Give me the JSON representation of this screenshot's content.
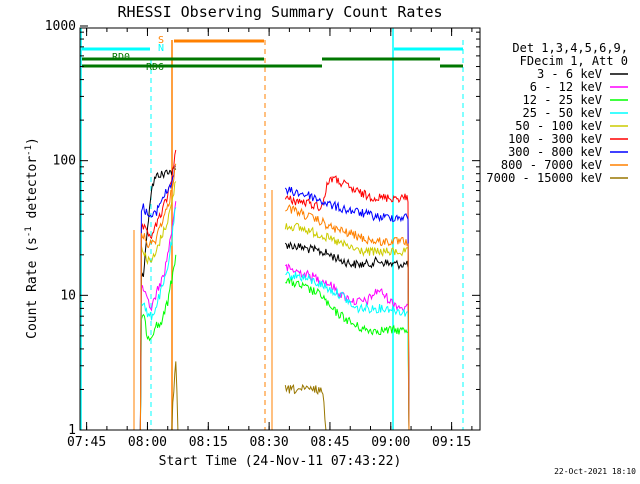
{
  "chart_data": {
    "type": "line",
    "title": "RHESSI Observing Summary Count Rates",
    "xlabel": "Start Time (24-Nov-11 07:43:22)",
    "ylabel": "Count Rate (s",
    "ylabel_sup1": "-1",
    "ylabel_mid": " detector",
    "ylabel_sup2": "-1",
    "ylabel_end": ")",
    "yscale": "log",
    "ylim": [
      1,
      1000
    ],
    "xlim": [
      "07:43:22",
      "09:22"
    ],
    "x_ticks": [
      "07:45",
      "08:00",
      "08:15",
      "08:30",
      "08:45",
      "09:00",
      "09:15"
    ],
    "y_ticks": [
      "1",
      "10",
      "100",
      "1000"
    ],
    "grid": false,
    "legend_position": "right",
    "legend_header": [
      "Det 1,3,4,5,6,9,",
      "FDecim 1, Att 0"
    ],
    "series": [
      {
        "name": "3 - 6 keV",
        "color": "#000000",
        "segments": [
          {
            "x": [
              "07:58",
              "07:59",
              "08:00",
              "08:01",
              "08:02",
              "08:03",
              "08:04",
              "08:05",
              "08:06",
              "08:07"
            ],
            "y": [
              0,
              14,
              30,
              62,
              75,
              80,
              78,
              85,
              82,
              86
            ]
          },
          {
            "x": [
              "08:34",
              "08:37",
              "08:40",
              "08:43",
              "08:45",
              "08:48",
              "08:51",
              "08:54",
              "08:57",
              "09:00",
              "09:03",
              "09:06"
            ],
            "y": [
              24,
              23,
              22,
              21,
              20,
              18,
              17,
              17,
              18,
              17,
              17,
              0
            ]
          }
        ]
      },
      {
        "name": "6 - 12 keV",
        "color": "#ff00ff",
        "segments": [
          {
            "x": [
              "07:58",
              "07:59",
              "08:00",
              "08:01",
              "08:02",
              "08:03",
              "08:04",
              "08:05",
              "08:06",
              "08:07"
            ],
            "y": [
              0,
              11,
              9,
              8,
              10,
              12,
              14,
              20,
              30,
              50
            ]
          },
          {
            "x": [
              "08:34",
              "08:37",
              "08:40",
              "08:43",
              "08:45",
              "08:48",
              "08:51",
              "08:54",
              "08:57",
              "09:00",
              "09:03",
              "09:06"
            ],
            "y": [
              16,
              15,
              14,
              13,
              12,
              10,
              9,
              9,
              11,
              9,
              8,
              0
            ]
          }
        ]
      },
      {
        "name": "12 - 25 keV",
        "color": "#00ff00",
        "segments": [
          {
            "x": [
              "07:58",
              "07:59",
              "08:00",
              "08:01",
              "08:02",
              "08:03",
              "08:04",
              "08:05",
              "08:06",
              "08:07"
            ],
            "y": [
              0,
              7,
              5,
              5,
              6,
              6,
              7,
              9,
              13,
              20
            ]
          },
          {
            "x": [
              "08:34",
              "08:37",
              "08:40",
              "08:43",
              "08:45",
              "08:48",
              "08:51",
              "08:54",
              "08:57",
              "09:00",
              "09:03",
              "09:06"
            ],
            "y": [
              13,
              12,
              11,
              10,
              8,
              7,
              6,
              5.5,
              5.5,
              5.5,
              5.5,
              0
            ]
          }
        ]
      },
      {
        "name": "25 - 50 keV",
        "color": "#00ffff",
        "segments": [
          {
            "x": [
              "07:58",
              "07:59",
              "08:00",
              "08:01",
              "08:02",
              "08:03",
              "08:04",
              "08:05",
              "08:06",
              "08:07"
            ],
            "y": [
              0,
              9,
              7,
              7,
              8,
              10,
              12,
              16,
              25,
              45
            ]
          },
          {
            "x": [
              "08:34",
              "08:37",
              "08:40",
              "08:43",
              "08:45",
              "08:48",
              "08:51",
              "08:54",
              "08:57",
              "09:00",
              "09:03",
              "09:06"
            ],
            "y": [
              14,
              14,
              13,
              12,
              11,
              10,
              8,
              8,
              8,
              8,
              7.5,
              0
            ]
          }
        ]
      },
      {
        "name": "50 - 100 keV",
        "color": "#cccc00",
        "segments": [
          {
            "x": [
              "07:58",
              "07:59",
              "08:00",
              "08:01",
              "08:02",
              "08:03",
              "08:04",
              "08:05",
              "08:06",
              "08:07"
            ],
            "y": [
              0,
              22,
              18,
              18,
              20,
              25,
              30,
              36,
              48,
              70
            ]
          },
          {
            "x": [
              "08:34",
              "08:37",
              "08:40",
              "08:43",
              "08:45",
              "08:48",
              "08:51",
              "08:54",
              "08:57",
              "09:00",
              "09:03",
              "09:06"
            ],
            "y": [
              33,
              32,
              30,
              28,
              26,
              24,
              22,
              21,
              21,
              21,
              21,
              0
            ]
          }
        ]
      },
      {
        "name": "100 - 300 keV",
        "color": "#ff0000",
        "segments": [
          {
            "x": [
              "07:58",
              "07:59",
              "08:00",
              "08:01",
              "08:02",
              "08:03",
              "08:04",
              "08:05",
              "08:06",
              "08:07"
            ],
            "y": [
              0,
              32,
              28,
              28,
              32,
              38,
              45,
              55,
              75,
              120
            ]
          },
          {
            "x": [
              "08:34",
              "08:37",
              "08:40",
              "08:43",
              "08:45",
              "08:48",
              "08:51",
              "08:54",
              "08:57",
              "09:00",
              "09:03",
              "09:06"
            ],
            "y": [
              52,
              50,
              48,
              45,
              75,
              68,
              60,
              55,
              53,
              53,
              53,
              0
            ]
          }
        ]
      },
      {
        "name": "300 - 800 keV",
        "color": "#0000ff",
        "segments": [
          {
            "x": [
              "07:58",
              "07:59",
              "08:00",
              "08:01",
              "08:02",
              "08:03",
              "08:04",
              "08:05",
              "08:06",
              "08:07"
            ],
            "y": [
              0,
              45,
              40,
              38,
              40,
              48,
              55,
              60,
              70,
              90
            ]
          },
          {
            "x": [
              "08:34",
              "08:37",
              "08:40",
              "08:43",
              "08:45",
              "08:48",
              "08:51",
              "08:54",
              "08:57",
              "09:00",
              "09:03",
              "09:06"
            ],
            "y": [
              60,
              58,
              55,
              50,
              47,
              44,
              42,
              40,
              38,
              38,
              38,
              0
            ]
          }
        ]
      },
      {
        "name": "800 - 7000 keV",
        "color": "#ff8000",
        "segments": [
          {
            "x": [
              "07:58",
              "07:59",
              "08:00",
              "08:01",
              "08:02",
              "08:03",
              "08:04",
              "08:05",
              "08:06",
              "08:07"
            ],
            "y": [
              0,
              28,
              24,
              24,
              26,
              32,
              38,
              45,
              60,
              95
            ]
          },
          {
            "x": [
              "08:34",
              "08:37",
              "08:40",
              "08:43",
              "08:45",
              "08:48",
              "08:51",
              "08:54",
              "08:57",
              "09:00",
              "09:03",
              "09:06"
            ],
            "y": [
              45,
              42,
              38,
              35,
              32,
              30,
              28,
              26,
              25,
              25,
              25,
              0
            ]
          }
        ]
      },
      {
        "name": "7000 - 15000 keV",
        "color": "#997700",
        "segments": [
          {
            "x": [
              "08:06",
              "08:07",
              "08:07:30"
            ],
            "y": [
              1,
              3,
              1
            ]
          },
          {
            "x": [
              "08:34",
              "08:37",
              "08:40",
              "08:43",
              "08:44"
            ],
            "y": [
              2,
              2,
              2,
              2,
              1
            ]
          }
        ]
      }
    ],
    "flags": [
      {
        "label": "S",
        "color": "#ff8000"
      },
      {
        "label": "N",
        "color": "#00ffff"
      },
      {
        "label": "RD0",
        "color": "#007700"
      },
      {
        "label": "RD6",
        "color": "#007700"
      }
    ]
  },
  "footer_timestamp": "22-Oct-2021 18:10"
}
